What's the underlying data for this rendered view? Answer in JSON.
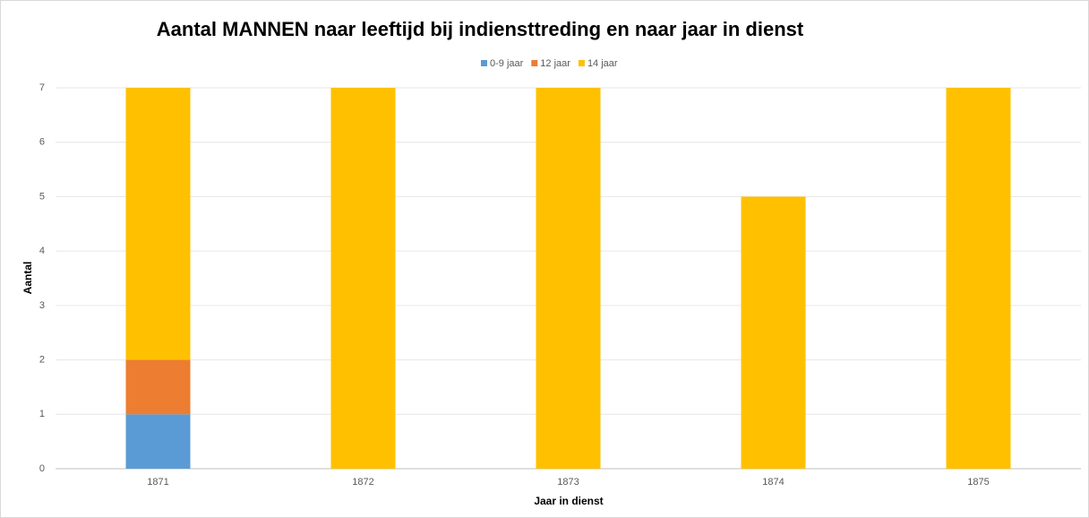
{
  "chart_data": {
    "type": "stacked_bar",
    "title": "Aantal MANNEN naar leeftijd bij indiensttreding en naar jaar in dienst",
    "x_label": "Jaar in dienst",
    "y_label": "Aantal",
    "categories": [
      "1871",
      "1872",
      "1873",
      "1874",
      "1875"
    ],
    "series": [
      {
        "name": "0-9 jaar",
        "color": "#5b9bd5",
        "values": [
          1,
          0,
          0,
          0,
          0
        ]
      },
      {
        "name": "12 jaar",
        "color": "#ed7d31",
        "values": [
          1,
          0,
          0,
          0,
          0
        ]
      },
      {
        "name": "14 jaar",
        "color": "#ffc000",
        "values": [
          5,
          7,
          7,
          5,
          7
        ]
      }
    ],
    "ylim": [
      0,
      7
    ],
    "yticks": [
      0,
      1,
      2,
      3,
      4,
      5,
      6,
      7
    ],
    "grid": true,
    "legend": "top"
  }
}
